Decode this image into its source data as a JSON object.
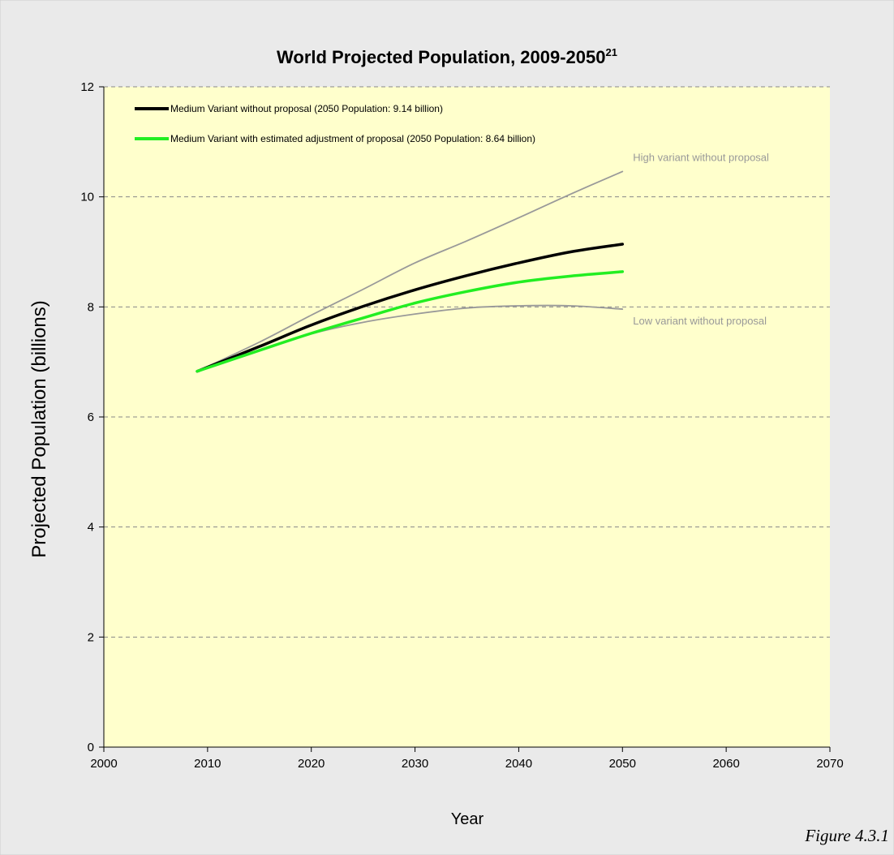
{
  "chart_data": {
    "type": "line",
    "title": "World Projected Population, 2009-2050",
    "title_superscript": "21",
    "xlabel": "Year",
    "ylabel": "Projected Population (billions)",
    "xlim": [
      2000,
      2070
    ],
    "ylim": [
      0,
      12
    ],
    "x_ticks": [
      2000,
      2010,
      2020,
      2030,
      2040,
      2050,
      2060,
      2070
    ],
    "y_ticks": [
      0,
      2,
      4,
      6,
      8,
      10,
      12
    ],
    "grid": "horizontal dashed",
    "legend_position": "top-left",
    "series": [
      {
        "name": "Medium Variant without proposal (2050 Population: 9.14 billion)",
        "in_legend": true,
        "color": "#000000",
        "x": [
          2009,
          2015,
          2020,
          2025,
          2030,
          2035,
          2040,
          2045,
          2050
        ],
        "y": [
          6.83,
          7.28,
          7.67,
          8.01,
          8.31,
          8.57,
          8.8,
          9.0,
          9.14
        ]
      },
      {
        "name": "Medium Variant with estimated adjustment of proposal (2050 Population: 8.64 billion)",
        "in_legend": true,
        "color": "#22ee22",
        "x": [
          2009,
          2015,
          2020,
          2025,
          2030,
          2035,
          2040,
          2045,
          2050
        ],
        "y": [
          6.83,
          7.21,
          7.52,
          7.8,
          8.07,
          8.28,
          8.45,
          8.56,
          8.64
        ]
      },
      {
        "name": "High variant without proposal",
        "in_legend": false,
        "color": "#999999",
        "x": [
          2009,
          2015,
          2020,
          2025,
          2030,
          2035,
          2040,
          2045,
          2050
        ],
        "y": [
          6.83,
          7.36,
          7.85,
          8.32,
          8.8,
          9.2,
          9.62,
          10.05,
          10.46
        ]
      },
      {
        "name": "Low variant without proposal",
        "in_legend": false,
        "color": "#999999",
        "x": [
          2009,
          2015,
          2020,
          2025,
          2030,
          2035,
          2040,
          2045,
          2050
        ],
        "y": [
          6.83,
          7.21,
          7.51,
          7.72,
          7.87,
          7.98,
          8.02,
          8.02,
          7.96
        ]
      }
    ],
    "figure_caption": "Figure 4.3.1",
    "colors": {
      "plot_background": "#ffffcc",
      "outer_background": "#eaeaea",
      "gridline": "#888888",
      "annotation_text": "#999999"
    }
  }
}
